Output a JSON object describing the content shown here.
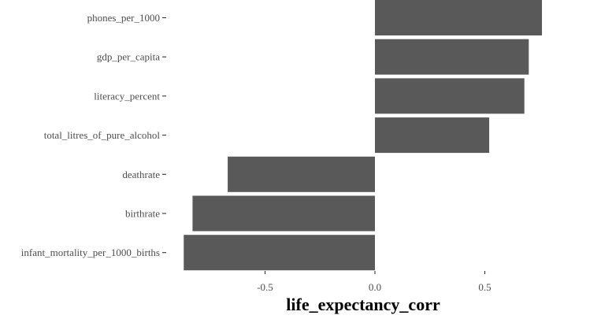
{
  "chart_data": {
    "type": "bar",
    "orientation": "horizontal",
    "categories": [
      "phones_per_1000",
      "gdp_per_capita",
      "literacy_percent",
      "total_litres_of_pure_alcohol",
      "deathrate",
      "birthrate",
      "infant_mortality_per_1000_births"
    ],
    "values": [
      0.76,
      0.7,
      0.68,
      0.52,
      -0.67,
      -0.83,
      -0.87
    ],
    "xlabel": "life_expectancy_corr",
    "ylabel": "",
    "xlim": [
      -0.87,
      0.76
    ],
    "xticks": [
      -0.5,
      0.0,
      0.5
    ],
    "xtick_labels": [
      "-0.5",
      "0.0",
      "0.5"
    ],
    "grid": false,
    "bar_color": "#595959"
  }
}
